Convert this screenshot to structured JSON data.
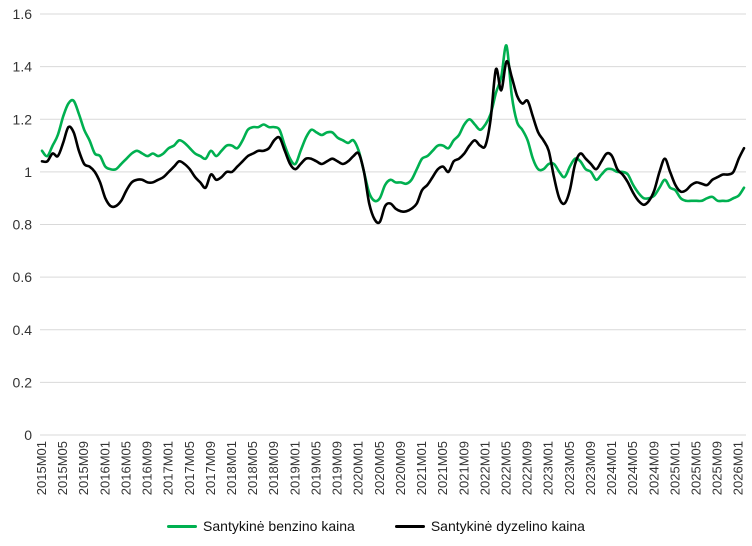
{
  "chart_data": {
    "type": "line",
    "title": "",
    "x_start": "2015M01",
    "x_tick_every": 4,
    "grid": "horizontal",
    "legend_position": "bottom",
    "ylim": [
      0,
      1.6
    ],
    "y_tick_labels": [
      "0",
      "0.2",
      "0.4",
      "0.6",
      "0.8",
      "1",
      "1.2",
      "1.4",
      "1.6"
    ],
    "x_tick_labels": [
      "2015M01",
      "2015M05",
      "2015M09",
      "2016M01",
      "2016M05",
      "2016M09",
      "2017M01",
      "2017M05",
      "2017M09",
      "2018M01",
      "2018M05",
      "2018M09",
      "2019M01",
      "2019M05",
      "2019M09",
      "2020M01",
      "2020M05",
      "2020M09",
      "2021M01",
      "2021M05",
      "2021M09",
      "2022M01",
      "2022M05",
      "2022M09",
      "2023M01",
      "2023M05",
      "2023M09",
      "2024M01",
      "2024M05",
      "2024M09",
      "2025M01",
      "2025M05",
      "2025M09",
      "2026M01"
    ],
    "colors": {
      "benzino": "#00B050",
      "dyzelino": "#000000",
      "gridline": "#D9D9D9",
      "axis_text": "#333333"
    },
    "series": [
      {
        "name": "Santykinė benzino kaina",
        "color": "#00B050",
        "values": [
          1.08,
          1.06,
          1.1,
          1.14,
          1.21,
          1.26,
          1.27,
          1.22,
          1.16,
          1.12,
          1.07,
          1.06,
          1.02,
          1.01,
          1.01,
          1.03,
          1.05,
          1.07,
          1.08,
          1.07,
          1.06,
          1.07,
          1.06,
          1.07,
          1.09,
          1.1,
          1.12,
          1.11,
          1.09,
          1.07,
          1.06,
          1.05,
          1.08,
          1.06,
          1.08,
          1.1,
          1.1,
          1.09,
          1.12,
          1.16,
          1.17,
          1.17,
          1.18,
          1.17,
          1.17,
          1.16,
          1.1,
          1.05,
          1.03,
          1.08,
          1.13,
          1.16,
          1.15,
          1.14,
          1.15,
          1.15,
          1.13,
          1.12,
          1.11,
          1.12,
          1.08,
          1.0,
          0.92,
          0.89,
          0.9,
          0.95,
          0.97,
          0.96,
          0.96,
          0.955,
          0.97,
          1.01,
          1.05,
          1.06,
          1.08,
          1.1,
          1.1,
          1.09,
          1.12,
          1.14,
          1.18,
          1.2,
          1.18,
          1.16,
          1.18,
          1.22,
          1.3,
          1.36,
          1.48,
          1.29,
          1.19,
          1.16,
          1.12,
          1.05,
          1.01,
          1.01,
          1.03,
          1.03,
          1.0,
          0.98,
          1.02,
          1.05,
          1.04,
          1.01,
          1.0,
          0.97,
          0.99,
          1.01,
          1.01,
          1.0,
          1.0,
          0.99,
          0.95,
          0.92,
          0.9,
          0.9,
          0.91,
          0.94,
          0.97,
          0.94,
          0.93,
          0.9,
          0.89,
          0.89,
          0.89,
          0.89,
          0.9,
          0.905,
          0.89,
          0.89,
          0.89,
          0.9,
          0.91,
          0.94
        ]
      },
      {
        "name": "Santykinė dyzelino kaina",
        "color": "#000000",
        "values": [
          1.04,
          1.04,
          1.07,
          1.06,
          1.11,
          1.17,
          1.15,
          1.08,
          1.03,
          1.02,
          1.0,
          0.96,
          0.9,
          0.87,
          0.87,
          0.89,
          0.93,
          0.96,
          0.97,
          0.97,
          0.96,
          0.96,
          0.97,
          0.98,
          1.0,
          1.02,
          1.04,
          1.03,
          1.01,
          0.98,
          0.96,
          0.94,
          0.99,
          0.97,
          0.98,
          1.0,
          1.0,
          1.02,
          1.04,
          1.06,
          1.07,
          1.08,
          1.08,
          1.09,
          1.12,
          1.13,
          1.08,
          1.03,
          1.01,
          1.03,
          1.05,
          1.05,
          1.04,
          1.03,
          1.04,
          1.05,
          1.04,
          1.03,
          1.04,
          1.06,
          1.07,
          1.0,
          0.88,
          0.82,
          0.81,
          0.87,
          0.88,
          0.86,
          0.85,
          0.85,
          0.86,
          0.88,
          0.93,
          0.95,
          0.98,
          1.01,
          1.02,
          1.0,
          1.04,
          1.05,
          1.07,
          1.1,
          1.12,
          1.1,
          1.1,
          1.2,
          1.39,
          1.31,
          1.42,
          1.36,
          1.29,
          1.26,
          1.27,
          1.21,
          1.15,
          1.12,
          1.08,
          0.98,
          0.9,
          0.88,
          0.93,
          1.03,
          1.07,
          1.05,
          1.03,
          1.01,
          1.04,
          1.07,
          1.06,
          1.01,
          0.99,
          0.96,
          0.92,
          0.89,
          0.875,
          0.89,
          0.93,
          1.0,
          1.05,
          1.0,
          0.95,
          0.925,
          0.93,
          0.95,
          0.96,
          0.955,
          0.95,
          0.97,
          0.98,
          0.99,
          0.99,
          1.0,
          1.05,
          1.09
        ]
      }
    ]
  }
}
